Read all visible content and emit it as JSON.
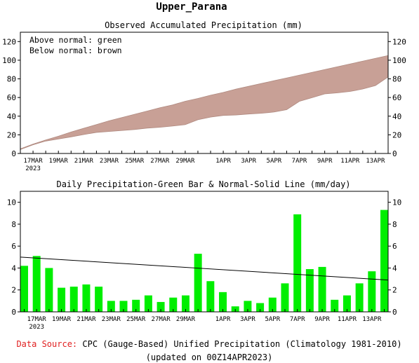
{
  "page_title": "Upper_Parana",
  "footer": {
    "source_label": "Data Source:",
    "source_text": "CPC (Gauge-Based) Unified Precipitation (Climatology 1981-2010)",
    "updated": "(updated on 00Z14APR2023)"
  },
  "colors": {
    "shade": "#c8a096",
    "bar": "#00ee00",
    "line": "#000000"
  },
  "chart_data": [
    {
      "type": "area",
      "title": "Observed Accumulated Precipitation (mm)",
      "legend_lines": [
        "Above normal: green",
        "Below normal: brown"
      ],
      "legend_position": "top-left",
      "ylim": [
        0,
        130
      ],
      "yticks": [
        0,
        20,
        40,
        60,
        80,
        100,
        120
      ],
      "x_days": [
        16,
        17,
        18,
        19,
        20,
        21,
        22,
        23,
        24,
        25,
        26,
        27,
        28,
        29,
        30,
        31,
        32,
        33,
        34,
        35,
        36,
        37,
        38,
        39,
        40,
        41,
        42,
        43,
        44,
        45
      ],
      "xtick_labels": [
        {
          "day": 17,
          "text": "17MAR",
          "sub": "2023"
        },
        {
          "day": 19,
          "text": "19MAR"
        },
        {
          "day": 21,
          "text": "21MAR"
        },
        {
          "day": 23,
          "text": "23MAR"
        },
        {
          "day": 25,
          "text": "25MAR"
        },
        {
          "day": 27,
          "text": "27MAR"
        },
        {
          "day": 29,
          "text": "29MAR"
        },
        {
          "day": 32,
          "text": "1APR"
        },
        {
          "day": 34,
          "text": "3APR"
        },
        {
          "day": 36,
          "text": "5APR"
        },
        {
          "day": 38,
          "text": "7APR"
        },
        {
          "day": 40,
          "text": "9APR"
        },
        {
          "day": 42,
          "text": "11APR"
        },
        {
          "day": 44,
          "text": "13APR"
        }
      ],
      "series": [
        {
          "role": "normal",
          "values": [
            5,
            10,
            14.5,
            18.5,
            23,
            27,
            31,
            35,
            38.5,
            42,
            45.5,
            49,
            52,
            56,
            59,
            62.5,
            65.5,
            69,
            72,
            75,
            78,
            81,
            84,
            87,
            90,
            93,
            96,
            99,
            102,
            105
          ]
        },
        {
          "role": "observed",
          "values": [
            4.2,
            9.3,
            13.3,
            15.5,
            17.8,
            20.3,
            22.6,
            23.6,
            24.6,
            25.7,
            27.2,
            28.1,
            29.4,
            30.9,
            36.2,
            39,
            40.8,
            41.3,
            42.3,
            43.1,
            44.4,
            47,
            55.9,
            59.8,
            63.9,
            65,
            66.5,
            69.1,
            72.8,
            82.1
          ]
        }
      ]
    },
    {
      "type": "bar",
      "title": "Daily Precipitation-Green Bar & Normal-Solid Line (mm/day)",
      "ylim": [
        0,
        11
      ],
      "yticks": [
        0,
        2,
        4,
        6,
        8,
        10
      ],
      "x_days": [
        16,
        17,
        18,
        19,
        20,
        21,
        22,
        23,
        24,
        25,
        26,
        27,
        28,
        29,
        30,
        31,
        32,
        33,
        34,
        35,
        36,
        37,
        38,
        39,
        40,
        41,
        42,
        43,
        44,
        45
      ],
      "series": [
        {
          "name": "Daily Precipitation",
          "values": [
            4.2,
            5.1,
            4.0,
            2.2,
            2.3,
            2.5,
            2.3,
            1.0,
            1.0,
            1.1,
            1.5,
            0.9,
            1.3,
            1.5,
            5.3,
            2.8,
            1.8,
            0.5,
            1.0,
            0.8,
            1.3,
            2.6,
            8.9,
            3.9,
            4.1,
            1.1,
            1.5,
            2.6,
            3.7,
            9.3
          ]
        },
        {
          "name": "Normal",
          "values": [
            5.0,
            2.9
          ]
        }
      ]
    }
  ]
}
